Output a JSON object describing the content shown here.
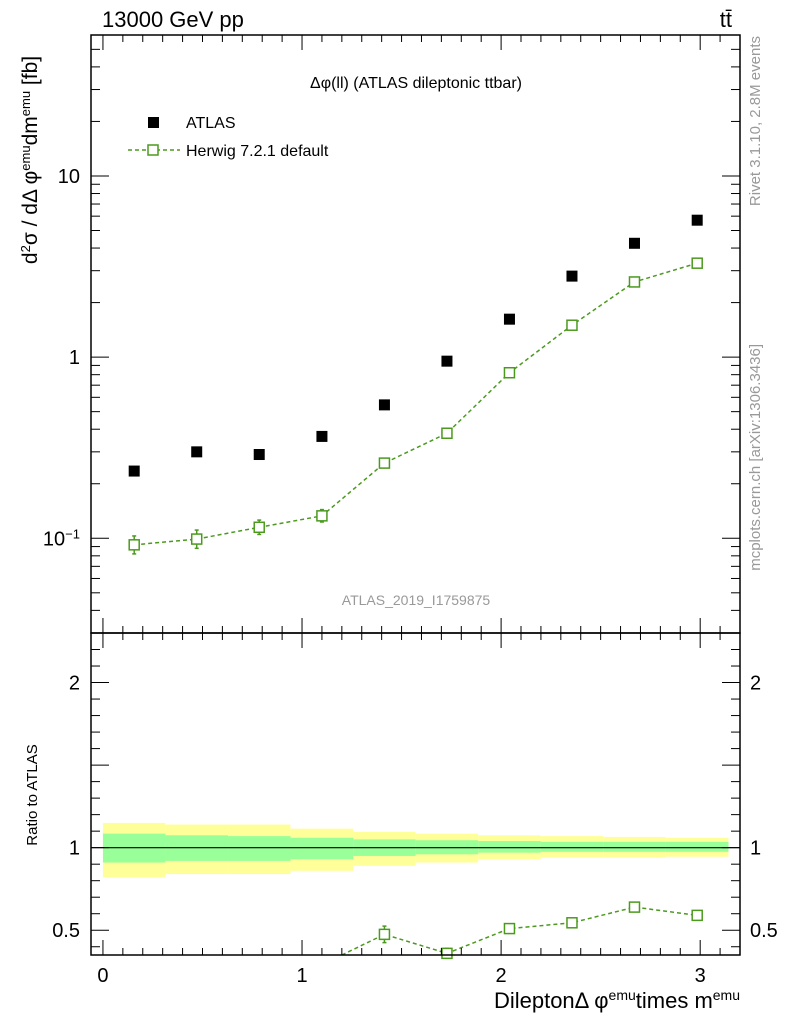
{
  "header": {
    "energy_label": "13000 GeV pp",
    "process_label": "tt̄"
  },
  "side_labels": {
    "rivet": "Rivet 3.1.10,  2.8M events",
    "site": "mcplots.cern.ch [arXiv:1306.3436]"
  },
  "chart_data": [
    {
      "type": "scatter",
      "panel": "main",
      "title": "Δφ(ll) (ATLAS dileptonic ttbar)",
      "watermark": "ATLAS_2019_I1759875",
      "ylabel": "d²σ / dΔφᵉᵐᵘdmᵉᵐᵘ [fb]",
      "yscale": "log",
      "xlim": [
        -0.06,
        3.2
      ],
      "ylim": [
        0.03,
        60
      ],
      "y_ticks": [
        {
          "value": 0.1,
          "label_base": "10",
          "label_exp": "−1"
        },
        {
          "value": 1,
          "label_base": "1",
          "label_exp": ""
        },
        {
          "value": 10,
          "label_base": "10",
          "label_exp": ""
        }
      ],
      "legend": {
        "position": "top-left",
        "entries": [
          "ATLAS",
          "Herwig 7.2.1 default"
        ]
      },
      "series": [
        {
          "name": "ATLAS",
          "style": "black-square",
          "color": "#000000",
          "x": [
            0.157,
            0.471,
            0.785,
            1.1,
            1.414,
            1.728,
            2.042,
            2.356,
            2.67,
            2.985
          ],
          "y": [
            0.235,
            0.3,
            0.29,
            0.365,
            0.545,
            0.95,
            1.62,
            2.8,
            4.25,
            5.7
          ]
        },
        {
          "name": "Herwig 7.2.1 default",
          "style": "green-open-square-dashed",
          "color": "#4b9a1e",
          "x": [
            0.157,
            0.471,
            0.785,
            1.1,
            1.414,
            1.728,
            2.042,
            2.356,
            2.67,
            2.985
          ],
          "y": [
            0.092,
            0.099,
            0.115,
            0.133,
            0.26,
            0.38,
            0.82,
            1.5,
            2.6,
            3.3
          ],
          "err_low": [
            0.01,
            0.011,
            0.01,
            0.01,
            0.011,
            0.012,
            0.03,
            0.05,
            0.07,
            0.08
          ],
          "err_high": [
            0.011,
            0.012,
            0.011,
            0.011,
            0.012,
            0.013,
            0.03,
            0.05,
            0.07,
            0.08
          ]
        }
      ]
    },
    {
      "type": "line",
      "panel": "ratio",
      "ylabel": "Ratio to ATLAS",
      "xlabel_parts": [
        "Dilepton",
        "Δ φ",
        "emu",
        "times m",
        "emu"
      ],
      "xlim": [
        -0.06,
        3.2
      ],
      "ylim": [
        0.35,
        2.3
      ],
      "x_ticks": [
        0,
        1,
        2,
        3
      ],
      "y_ticks": [
        0.5,
        1,
        2
      ],
      "bands": {
        "edges": [
          0.0,
          0.314,
          0.628,
          0.942,
          1.257,
          1.571,
          1.885,
          2.199,
          2.513,
          2.827,
          3.142
        ],
        "yellow_low": [
          0.82,
          0.84,
          0.84,
          0.86,
          0.89,
          0.91,
          0.93,
          0.94,
          0.94,
          0.945
        ],
        "yellow_high": [
          1.15,
          1.14,
          1.14,
          1.115,
          1.095,
          1.085,
          1.075,
          1.07,
          1.065,
          1.06
        ],
        "green_low": [
          0.91,
          0.92,
          0.92,
          0.93,
          0.95,
          0.96,
          0.97,
          0.975,
          0.975,
          0.975
        ],
        "green_high": [
          1.085,
          1.075,
          1.07,
          1.06,
          1.05,
          1.045,
          1.04,
          1.035,
          1.035,
          1.035
        ],
        "yellow_color": "#ffff99",
        "green_color": "#99ff99"
      },
      "series": [
        {
          "name": "Herwig 7.2.1 default",
          "color": "#4b9a1e",
          "x": [
            1.2,
            1.414,
            1.728,
            2.042,
            2.356,
            2.67,
            2.985
          ],
          "y": [
            0.35,
            0.475,
            0.36,
            0.51,
            0.545,
            0.64,
            0.59
          ],
          "markers": [
            false,
            true,
            true,
            true,
            true,
            true,
            true
          ],
          "err": [
            0,
            0.05,
            0.03,
            0.025,
            0.02,
            0.017,
            0.015
          ]
        }
      ]
    }
  ]
}
